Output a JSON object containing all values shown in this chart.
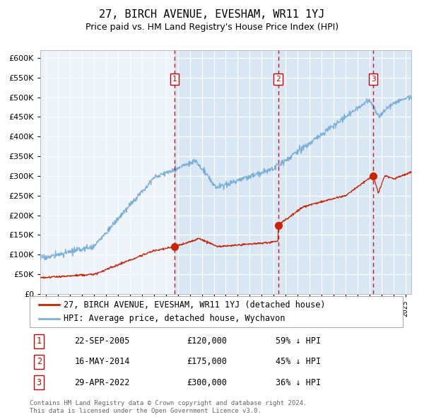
{
  "title": "27, BIRCH AVENUE, EVESHAM, WR11 1YJ",
  "subtitle": "Price paid vs. HM Land Registry's House Price Index (HPI)",
  "legend_red": "27, BIRCH AVENUE, EVESHAM, WR11 1YJ (detached house)",
  "legend_blue": "HPI: Average price, detached house, Wychavon",
  "transactions": [
    {
      "num": 1,
      "date": "22-SEP-2005",
      "price": 120000,
      "pct": "59%",
      "dir": "↓",
      "x": 2005.72
    },
    {
      "num": 2,
      "date": "16-MAY-2014",
      "price": 175000,
      "pct": "45%",
      "dir": "↓",
      "x": 2014.37
    },
    {
      "num": 3,
      "date": "29-APR-2022",
      "price": 300000,
      "pct": "36%",
      "dir": "↓",
      "x": 2022.32
    }
  ],
  "footnote1": "Contains HM Land Registry data © Crown copyright and database right 2024.",
  "footnote2": "This data is licensed under the Open Government Licence v3.0.",
  "ylim": [
    0,
    620000
  ],
  "xlim_left": 1994.5,
  "xlim_right": 2025.5,
  "plot_bg_main": "#eef3f9",
  "plot_bg_shaded": "#d9e7f5",
  "grid_color": "#ffffff",
  "red_color": "#cc2200",
  "blue_color": "#7ab0d8",
  "hatch_color": "#c5d9ea",
  "title_fontsize": 11,
  "subtitle_fontsize": 9
}
